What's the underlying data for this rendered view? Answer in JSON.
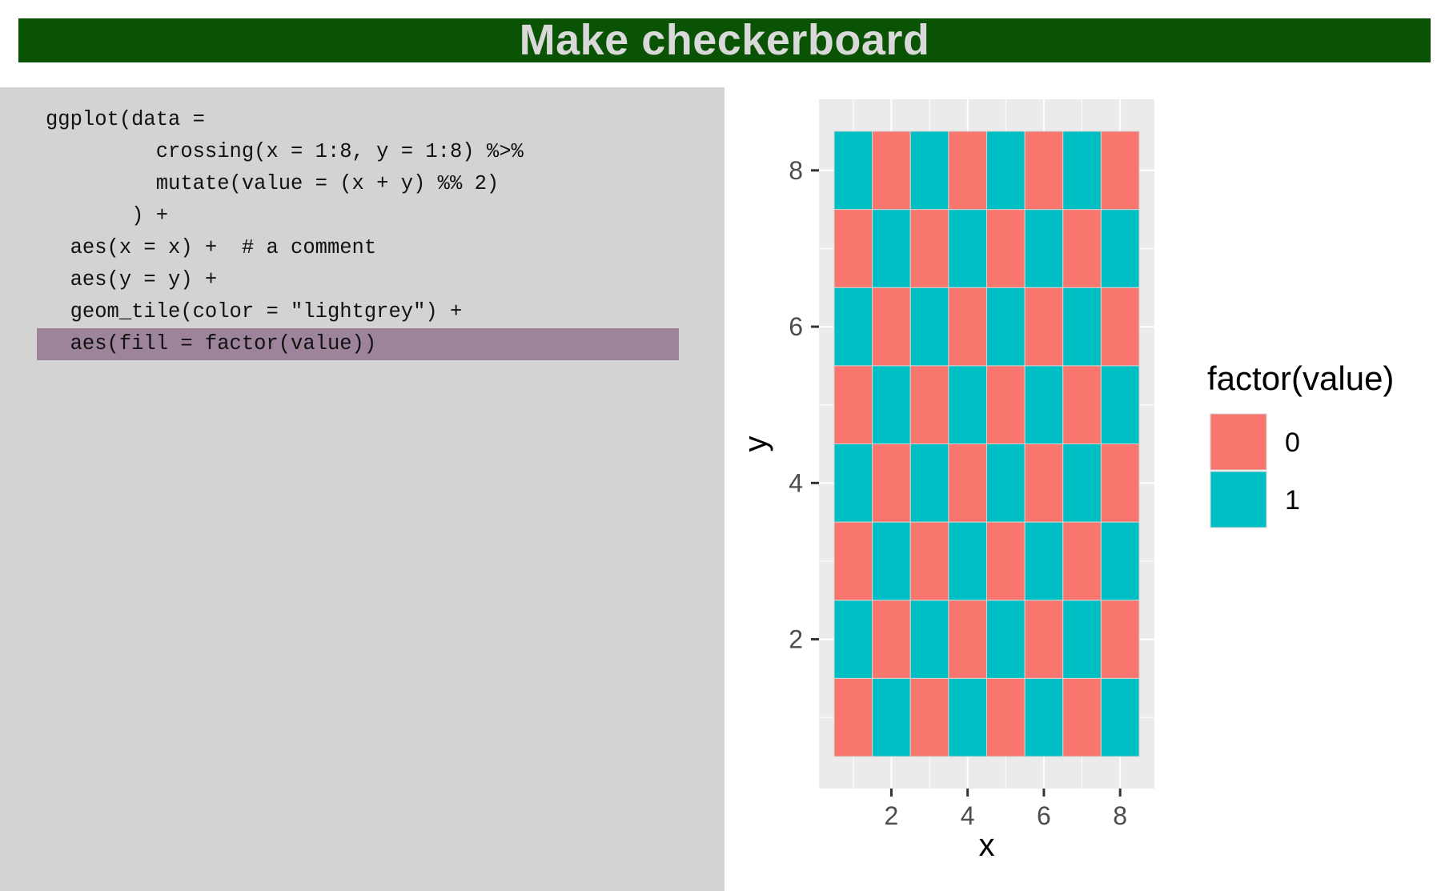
{
  "header": {
    "title": "Make checkerboard"
  },
  "code": {
    "lines": [
      "ggplot(data =",
      "         crossing(x = 1:8, y = 1:8) %>%",
      "         mutate(value = (x + y) %% 2)",
      "       ) +",
      "  aes(x = x) +  # a comment",
      "  aes(y = y) +",
      "  geom_tile(color = \"lightgrey\") +",
      "  aes(fill = factor(value))"
    ],
    "highlighted_line": 8
  },
  "colors": {
    "title_bg": "#0b5304",
    "code_bg": "#d3d3d3",
    "highlight": "#9d849b",
    "panel_bg": "#ebebeb",
    "tile_border": "#d3d3d3",
    "fill_0": "#f8766d",
    "fill_1": "#00bfc4"
  },
  "chart_data": {
    "type": "heatmap",
    "x": [
      1,
      2,
      3,
      4,
      5,
      6,
      7,
      8
    ],
    "y": [
      1,
      2,
      3,
      4,
      5,
      6,
      7,
      8
    ],
    "value_rule": "(x + y) %% 2",
    "xlabel": "x",
    "ylabel": "y",
    "xlim": [
      0.5,
      8.5
    ],
    "ylim": [
      0.5,
      8.5
    ],
    "x_ticks": [
      2,
      4,
      6,
      8
    ],
    "y_ticks": [
      2,
      4,
      6,
      8
    ],
    "legend": {
      "title": "factor(value)",
      "placement": "right",
      "entries": [
        {
          "label": "0",
          "color": "#f8766d"
        },
        {
          "label": "1",
          "color": "#00bfc4"
        }
      ]
    },
    "grid": true
  }
}
